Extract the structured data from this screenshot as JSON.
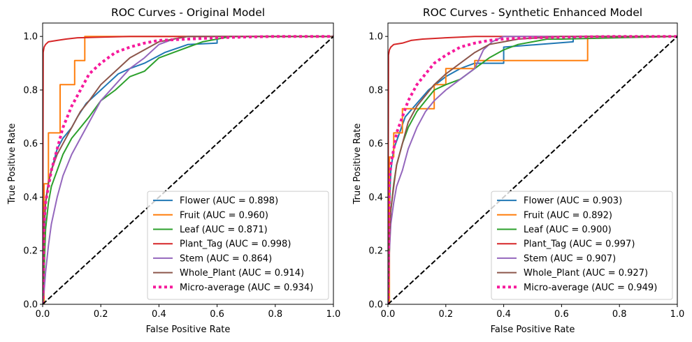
{
  "chart_data": [
    {
      "type": "line",
      "title": "ROC Curves - Original Model",
      "xlabel": "False Positive Rate",
      "ylabel": "True Positive Rate",
      "xlim": [
        0,
        1.0
      ],
      "ylim": [
        0,
        1.05
      ],
      "x_ticks": [
        "0.0",
        "0.2",
        "0.4",
        "0.6",
        "0.8",
        "1.0"
      ],
      "y_ticks": [
        "0.0",
        "0.2",
        "0.4",
        "0.6",
        "0.8",
        "1.0"
      ],
      "grid": false,
      "legend_position": "lower-right",
      "series": [
        {
          "name": "Flower (AUC = 0.898)",
          "color": "#1f77b4",
          "style": "solid",
          "x": [
            0,
            0.005,
            0.01,
            0.02,
            0.03,
            0.05,
            0.07,
            0.1,
            0.12,
            0.15,
            0.18,
            0.22,
            0.26,
            0.3,
            0.35,
            0.42,
            0.5,
            0.6,
            0.6,
            1.0
          ],
          "y": [
            0,
            0.25,
            0.38,
            0.46,
            0.5,
            0.58,
            0.62,
            0.66,
            0.7,
            0.75,
            0.78,
            0.82,
            0.86,
            0.88,
            0.9,
            0.94,
            0.97,
            0.975,
            1.0,
            1.0
          ]
        },
        {
          "name": "Fruit (AUC = 0.960)",
          "color": "#ff7f0e",
          "style": "solid",
          "x": [
            0,
            0.005,
            0.005,
            0.02,
            0.02,
            0.06,
            0.06,
            0.11,
            0.11,
            0.145,
            0.145,
            1.0
          ],
          "y": [
            0,
            0,
            0.45,
            0.45,
            0.64,
            0.64,
            0.82,
            0.82,
            0.91,
            0.91,
            1.0,
            1.0
          ]
        },
        {
          "name": "Leaf (AUC = 0.871)",
          "color": "#2ca02c",
          "style": "solid",
          "x": [
            0,
            0.005,
            0.01,
            0.02,
            0.03,
            0.05,
            0.07,
            0.1,
            0.13,
            0.16,
            0.2,
            0.25,
            0.3,
            0.35,
            0.4,
            0.45,
            0.5,
            0.55,
            0.6,
            0.65,
            0.7,
            1.0
          ],
          "y": [
            0,
            0.12,
            0.28,
            0.38,
            0.44,
            0.5,
            0.56,
            0.62,
            0.66,
            0.7,
            0.76,
            0.8,
            0.85,
            0.87,
            0.92,
            0.94,
            0.96,
            0.98,
            0.99,
            1.0,
            1.0,
            1.0
          ]
        },
        {
          "name": "Plant_Tag (AUC = 0.998)",
          "color": "#d62728",
          "style": "solid",
          "x": [
            0,
            0.002,
            0.005,
            0.01,
            0.02,
            0.05,
            0.08,
            0.12,
            0.2,
            0.3,
            0.4,
            1.0
          ],
          "y": [
            0,
            0.94,
            0.96,
            0.97,
            0.98,
            0.985,
            0.99,
            0.995,
            0.997,
            1.0,
            1.0,
            1.0
          ]
        },
        {
          "name": "Stem (AUC = 0.864)",
          "color": "#9467bd",
          "style": "solid",
          "x": [
            0,
            0.005,
            0.01,
            0.02,
            0.03,
            0.05,
            0.07,
            0.1,
            0.13,
            0.16,
            0.2,
            0.25,
            0.3,
            0.35,
            0.4,
            0.45,
            0.5,
            0.55,
            1.0
          ],
          "y": [
            0,
            0.05,
            0.12,
            0.22,
            0.3,
            0.4,
            0.48,
            0.56,
            0.62,
            0.68,
            0.76,
            0.82,
            0.88,
            0.92,
            0.97,
            0.99,
            1.0,
            1.0,
            1.0
          ]
        },
        {
          "name": "Whole_Plant (AUC = 0.914)",
          "color": "#8c564b",
          "style": "solid",
          "x": [
            0,
            0.005,
            0.01,
            0.02,
            0.03,
            0.05,
            0.07,
            0.1,
            0.13,
            0.16,
            0.2,
            0.25,
            0.3,
            0.35,
            0.4,
            0.45,
            0.5,
            1.0
          ],
          "y": [
            0,
            0.3,
            0.38,
            0.45,
            0.5,
            0.56,
            0.6,
            0.66,
            0.72,
            0.76,
            0.82,
            0.87,
            0.92,
            0.95,
            0.98,
            0.99,
            1.0,
            1.0
          ]
        },
        {
          "name": "Micro-average (AUC = 0.934)",
          "color": "#f61a9c",
          "style": "dotted",
          "x": [
            0,
            0.005,
            0.01,
            0.02,
            0.03,
            0.05,
            0.07,
            0.1,
            0.13,
            0.16,
            0.2,
            0.25,
            0.3,
            0.35,
            0.4,
            0.5,
            0.6,
            0.7,
            0.8,
            1.0
          ],
          "y": [
            0,
            0.3,
            0.38,
            0.44,
            0.5,
            0.58,
            0.66,
            0.74,
            0.8,
            0.86,
            0.9,
            0.94,
            0.96,
            0.975,
            0.985,
            0.99,
            0.995,
            0.998,
            1.0,
            1.0
          ]
        },
        {
          "name": "",
          "color": "#000000",
          "style": "dashed",
          "x": [
            0,
            1.0
          ],
          "y": [
            0,
            1.0
          ]
        }
      ]
    },
    {
      "type": "line",
      "title": "ROC Curves - Synthetic Enhanced Model",
      "xlabel": "False Positive Rate",
      "ylabel": "True Positive Rate",
      "xlim": [
        0,
        1.0
      ],
      "ylim": [
        0,
        1.05
      ],
      "x_ticks": [
        "0.0",
        "0.2",
        "0.4",
        "0.6",
        "0.8",
        "1.0"
      ],
      "y_ticks": [
        "0.0",
        "0.2",
        "0.4",
        "0.6",
        "0.8",
        "1.0"
      ],
      "grid": false,
      "legend_position": "lower-right",
      "series": [
        {
          "name": "Flower (AUC = 0.903)",
          "color": "#1f77b4",
          "style": "solid",
          "x": [
            0,
            0.005,
            0.01,
            0.02,
            0.04,
            0.06,
            0.1,
            0.14,
            0.2,
            0.25,
            0.3,
            0.33,
            0.4,
            0.4,
            0.64,
            0.64,
            1.0
          ],
          "y": [
            0,
            0.35,
            0.5,
            0.58,
            0.64,
            0.7,
            0.75,
            0.8,
            0.85,
            0.88,
            0.9,
            0.9,
            0.9,
            0.96,
            0.98,
            1.0,
            1.0
          ]
        },
        {
          "name": "Fruit (AUC = 0.892)",
          "color": "#ff7f0e",
          "style": "solid",
          "x": [
            0,
            0.005,
            0.005,
            0.02,
            0.02,
            0.05,
            0.05,
            0.16,
            0.16,
            0.2,
            0.2,
            0.3,
            0.3,
            0.69,
            0.69,
            1.0
          ],
          "y": [
            0,
            0,
            0.55,
            0.55,
            0.64,
            0.64,
            0.73,
            0.73,
            0.82,
            0.82,
            0.88,
            0.88,
            0.91,
            0.91,
            1.0,
            1.0
          ]
        },
        {
          "name": "Leaf (AUC = 0.900)",
          "color": "#2ca02c",
          "style": "solid",
          "x": [
            0,
            0.005,
            0.01,
            0.02,
            0.03,
            0.05,
            0.07,
            0.1,
            0.13,
            0.16,
            0.2,
            0.25,
            0.3,
            0.35,
            0.4,
            0.45,
            0.5,
            0.55,
            0.6,
            1.0
          ],
          "y": [
            0,
            0.2,
            0.35,
            0.45,
            0.52,
            0.6,
            0.66,
            0.72,
            0.76,
            0.8,
            0.82,
            0.84,
            0.88,
            0.92,
            0.95,
            0.97,
            0.98,
            0.99,
            0.99,
            1.0
          ]
        },
        {
          "name": "Plant_Tag (AUC = 0.997)",
          "color": "#d62728",
          "style": "solid",
          "x": [
            0,
            0.002,
            0.005,
            0.01,
            0.02,
            0.05,
            0.08,
            0.12,
            0.2,
            0.3,
            0.4,
            1.0
          ],
          "y": [
            0,
            0.93,
            0.95,
            0.96,
            0.97,
            0.975,
            0.985,
            0.99,
            0.995,
            1.0,
            1.0,
            1.0
          ]
        },
        {
          "name": "Stem (AUC = 0.907)",
          "color": "#9467bd",
          "style": "solid",
          "x": [
            0,
            0.005,
            0.01,
            0.02,
            0.03,
            0.05,
            0.07,
            0.1,
            0.13,
            0.16,
            0.2,
            0.25,
            0.3,
            0.33,
            0.36,
            0.4,
            1.0
          ],
          "y": [
            0,
            0.2,
            0.3,
            0.38,
            0.44,
            0.5,
            0.58,
            0.66,
            0.72,
            0.76,
            0.8,
            0.84,
            0.88,
            0.95,
            0.98,
            1.0,
            1.0
          ]
        },
        {
          "name": "Whole_Plant (AUC = 0.927)",
          "color": "#8c564b",
          "style": "solid",
          "x": [
            0,
            0.005,
            0.01,
            0.02,
            0.03,
            0.05,
            0.07,
            0.1,
            0.13,
            0.16,
            0.2,
            0.25,
            0.3,
            0.35,
            0.4,
            0.45,
            0.6,
            1.0
          ],
          "y": [
            0,
            0.25,
            0.35,
            0.44,
            0.52,
            0.6,
            0.68,
            0.74,
            0.78,
            0.82,
            0.86,
            0.9,
            0.94,
            0.97,
            0.98,
            0.99,
            1.0,
            1.0
          ]
        },
        {
          "name": "Micro-average (AUC = 0.949)",
          "color": "#f61a9c",
          "style": "dotted",
          "x": [
            0,
            0.005,
            0.01,
            0.02,
            0.03,
            0.05,
            0.07,
            0.1,
            0.13,
            0.16,
            0.2,
            0.25,
            0.3,
            0.35,
            0.4,
            0.5,
            0.6,
            0.7,
            0.8,
            1.0
          ],
          "y": [
            0,
            0.45,
            0.52,
            0.58,
            0.64,
            0.7,
            0.76,
            0.82,
            0.86,
            0.9,
            0.93,
            0.96,
            0.975,
            0.985,
            0.99,
            0.995,
            0.997,
            0.999,
            1.0,
            1.0
          ]
        },
        {
          "name": "",
          "color": "#000000",
          "style": "dashed",
          "x": [
            0,
            1.0
          ],
          "y": [
            0,
            1.0
          ]
        }
      ]
    }
  ]
}
